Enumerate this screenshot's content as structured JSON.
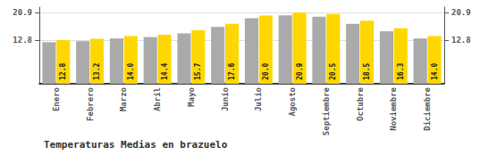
{
  "chart_data": {
    "type": "bar",
    "title": "Temperaturas Medias en brazuelo",
    "categories": [
      "Enero",
      "Febrero",
      "Marzo",
      "Abril",
      "Mayo",
      "Junio",
      "Julio",
      "Agosto",
      "Septiembre",
      "Octubre",
      "Noviembre",
      "Diciembre"
    ],
    "series": [
      {
        "color": "#AAAAAA",
        "values": [
          12.2,
          12.5,
          13.3,
          13.7,
          14.8,
          16.7,
          19.2,
          20.1,
          19.7,
          17.6,
          15.4,
          13.3
        ]
      },
      {
        "color": "#FFD700",
        "values": [
          12.8,
          13.2,
          14.0,
          14.4,
          15.7,
          17.6,
          20.0,
          20.9,
          20.5,
          18.5,
          16.3,
          14.0
        ],
        "value_labels": [
          "12.8",
          "13.2",
          "14.0",
          "14.4",
          "15.7",
          "17.6",
          "20.0",
          "20.9",
          "20.5",
          "18.5",
          "16.3",
          "14.0"
        ],
        "data_labels": true
      }
    ],
    "ylim": [
      0.0,
      22.5
    ],
    "yticks": [
      12.8,
      20.9
    ],
    "grid": true
  }
}
